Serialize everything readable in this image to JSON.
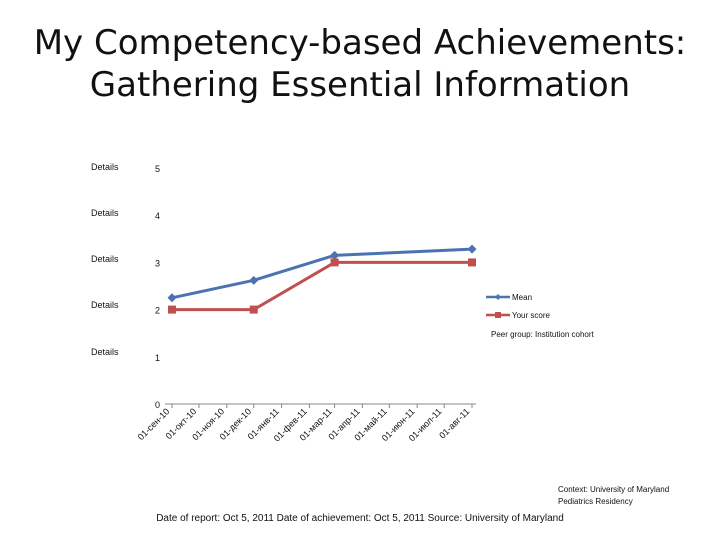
{
  "title_line1": "My Competency-based Achievements:",
  "title_line2": "Gathering Essential Information",
  "details_label": "Details",
  "chart_data": {
    "type": "line",
    "categories": [
      "01-сен-10",
      "01-окт-10",
      "01-ноя-10",
      "01-дек-10",
      "01-янв-11",
      "01-фев-11",
      "01-мар-11",
      "01-апр-11",
      "01-май-11",
      "01-июн-11",
      "01-июл-11",
      "01-авг-11"
    ],
    "category_dates": [
      "2010-09-01",
      "2010-10-01",
      "2010-11-01",
      "2010-12-01",
      "2011-01-01",
      "2011-02-01",
      "2011-03-01",
      "2011-04-01",
      "2011-05-01",
      "2011-06-01",
      "2011-07-01",
      "2011-08-01"
    ],
    "series": [
      {
        "name": "Mean",
        "color": "#4a73b0",
        "marker": "diamond",
        "points": [
          {
            "date": "2010-09-01",
            "value": 2.25
          },
          {
            "date": "2010-12-01",
            "value": 2.62
          },
          {
            "date": "2011-03-01",
            "value": 3.15
          },
          {
            "date": "2011-08-01",
            "value": 3.28
          }
        ]
      },
      {
        "name": "Your score",
        "color": "#c0504d",
        "marker": "square",
        "points": [
          {
            "date": "2010-09-01",
            "value": 2
          },
          {
            "date": "2010-12-01",
            "value": 2
          },
          {
            "date": "2011-03-01",
            "value": 3
          },
          {
            "date": "2011-08-01",
            "value": 3
          }
        ]
      }
    ],
    "yticks": [
      "0",
      "1",
      "2",
      "3",
      "4",
      "5"
    ],
    "ylim": [
      0,
      5
    ],
    "legend_position": "right",
    "legend_note": "Peer group: Institution cohort",
    "grid": false
  },
  "context_line1": "Context: University of Maryland",
  "context_line2": "Pediatrics Residency",
  "footer": "Date of report: Oct 5, 2011 Date of achievement: Oct 5, 2011 Source: University of Maryland"
}
